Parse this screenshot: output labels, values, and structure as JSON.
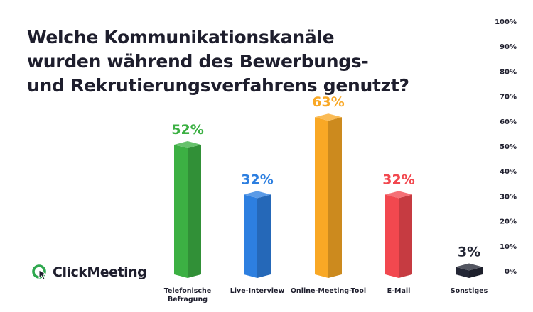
{
  "title": "Welche Kommunikationskanäle wurden während des Bewerbungs- und Rekrutierungsverfahrens genutzt?",
  "brand": {
    "name": "ClickMeeting",
    "icon": "clickmeeting-logo-icon",
    "color": "#2fa84f"
  },
  "chart_data": {
    "type": "bar",
    "title": "Welche Kommunikationskanäle wurden während des Bewerbungs- und Rekrutierungsverfahrens genutzt?",
    "categories": [
      [
        "Telefonische",
        "Befragung"
      ],
      [
        "Live-Interview"
      ],
      [
        "Online-Meeting-Tool"
      ],
      [
        "E-Mail"
      ],
      [
        "Sonstiges"
      ]
    ],
    "values": [
      52,
      32,
      63,
      32,
      3
    ],
    "data_labels": [
      "52%",
      "32%",
      "63%",
      "32%",
      "3%"
    ],
    "colors": [
      "#3cb043",
      "#2d7fe0",
      "#f9a825",
      "#f2484f",
      "#232635"
    ],
    "label_colors": [
      "#3cb043",
      "#2d7fe0",
      "#f9a825",
      "#f2484f",
      "#232635"
    ],
    "ylim": [
      0,
      100
    ],
    "yticks": [
      "0%",
      "10%",
      "20%",
      "30%",
      "40%",
      "50%",
      "60%",
      "70%",
      "80%",
      "90%",
      "100%"
    ],
    "ytick_values": [
      0,
      10,
      20,
      30,
      40,
      50,
      60,
      70,
      80,
      90,
      100
    ],
    "yaxis_side": "right",
    "grid": false,
    "xlabel": "",
    "ylabel": ""
  }
}
